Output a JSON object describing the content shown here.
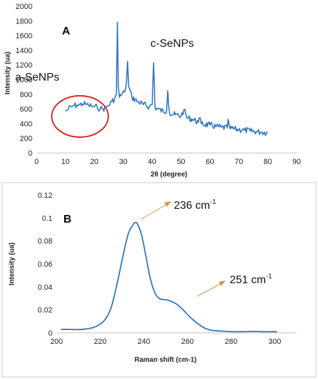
{
  "chart_data": [
    {
      "type": "line",
      "panel_label": "A",
      "xlabel": "2θ (degree)",
      "ylabel": "Intensity (ua)",
      "xlim": [
        0,
        90
      ],
      "ylim": [
        0,
        2000
      ],
      "xticks": [
        "0",
        "10",
        "20",
        "30",
        "40",
        "50",
        "60",
        "70",
        "80",
        "90"
      ],
      "yticks": [
        "0",
        "200",
        "400",
        "600",
        "800",
        "1000",
        "1200",
        "1400",
        "1600",
        "1800",
        "2000"
      ],
      "grid": false,
      "line_color": "#2e75c5",
      "series": [
        {
          "x": [
            10,
            11,
            12,
            13,
            14,
            15,
            16,
            17,
            18,
            19,
            20,
            21,
            22,
            23,
            24,
            25,
            26,
            27,
            27.6,
            28,
            28.3,
            28.7,
            29.5,
            30.5,
            31.1,
            31.5,
            31.9,
            33,
            35,
            37,
            39,
            40,
            40.5,
            41,
            42,
            44,
            45,
            45.4,
            46,
            48,
            50,
            51,
            52,
            54,
            56,
            56.3,
            57,
            60,
            62,
            64,
            66,
            66.3,
            67,
            70,
            72,
            74,
            76,
            78,
            80
          ],
          "y": [
            570,
            600,
            630,
            645,
            650,
            660,
            670,
            665,
            650,
            640,
            630,
            625,
            605,
            600,
            620,
            650,
            700,
            740,
            800,
            1780,
            900,
            760,
            800,
            830,
            960,
            1250,
            900,
            760,
            700,
            660,
            630,
            660,
            1230,
            620,
            600,
            560,
            570,
            850,
            550,
            520,
            500,
            590,
            480,
            460,
            420,
            480,
            400,
            380,
            360,
            350,
            340,
            460,
            330,
            320,
            310,
            300,
            290,
            285,
            280
          ]
        }
      ],
      "annotations": [
        "a-SeNPs",
        "c-SeNPs"
      ],
      "highlight_color": "#e02020"
    },
    {
      "type": "line",
      "panel_label": "B",
      "xlabel": "Raman shift (cm-1)",
      "ylabel": "Intensity (ua)",
      "xlim": [
        200,
        310
      ],
      "ylim": [
        0,
        0.12
      ],
      "xticks": [
        "200",
        "220",
        "240",
        "260",
        "280",
        "300"
      ],
      "yticks": [
        "0",
        "0.02",
        "0.04",
        "0.06",
        "0.08",
        "0.1",
        "0.12"
      ],
      "grid": false,
      "line_color": "#2e75c5",
      "arrow_color": "#f0883e",
      "series": [
        {
          "x": [
            202,
            206,
            210,
            214,
            218,
            222,
            225,
            228,
            231,
            233,
            235,
            236,
            237,
            239,
            241,
            243,
            245,
            247,
            249,
            251,
            253,
            255,
            258,
            261,
            264,
            268,
            272,
            276,
            280,
            285,
            290,
            295,
            301
          ],
          "y": [
            0.003,
            0.003,
            0.0028,
            0.0035,
            0.0055,
            0.011,
            0.022,
            0.045,
            0.072,
            0.087,
            0.094,
            0.096,
            0.095,
            0.085,
            0.066,
            0.047,
            0.035,
            0.03,
            0.029,
            0.0285,
            0.027,
            0.025,
            0.02,
            0.014,
            0.009,
            0.004,
            0.002,
            0.0015,
            0.001,
            0.001,
            0.0012,
            0.001,
            0.001
          ]
        }
      ],
      "annotations": [
        {
          "value": "236 cm",
          "sup": "-1"
        },
        {
          "value": "251 cm",
          "sup": "-1"
        }
      ]
    }
  ]
}
